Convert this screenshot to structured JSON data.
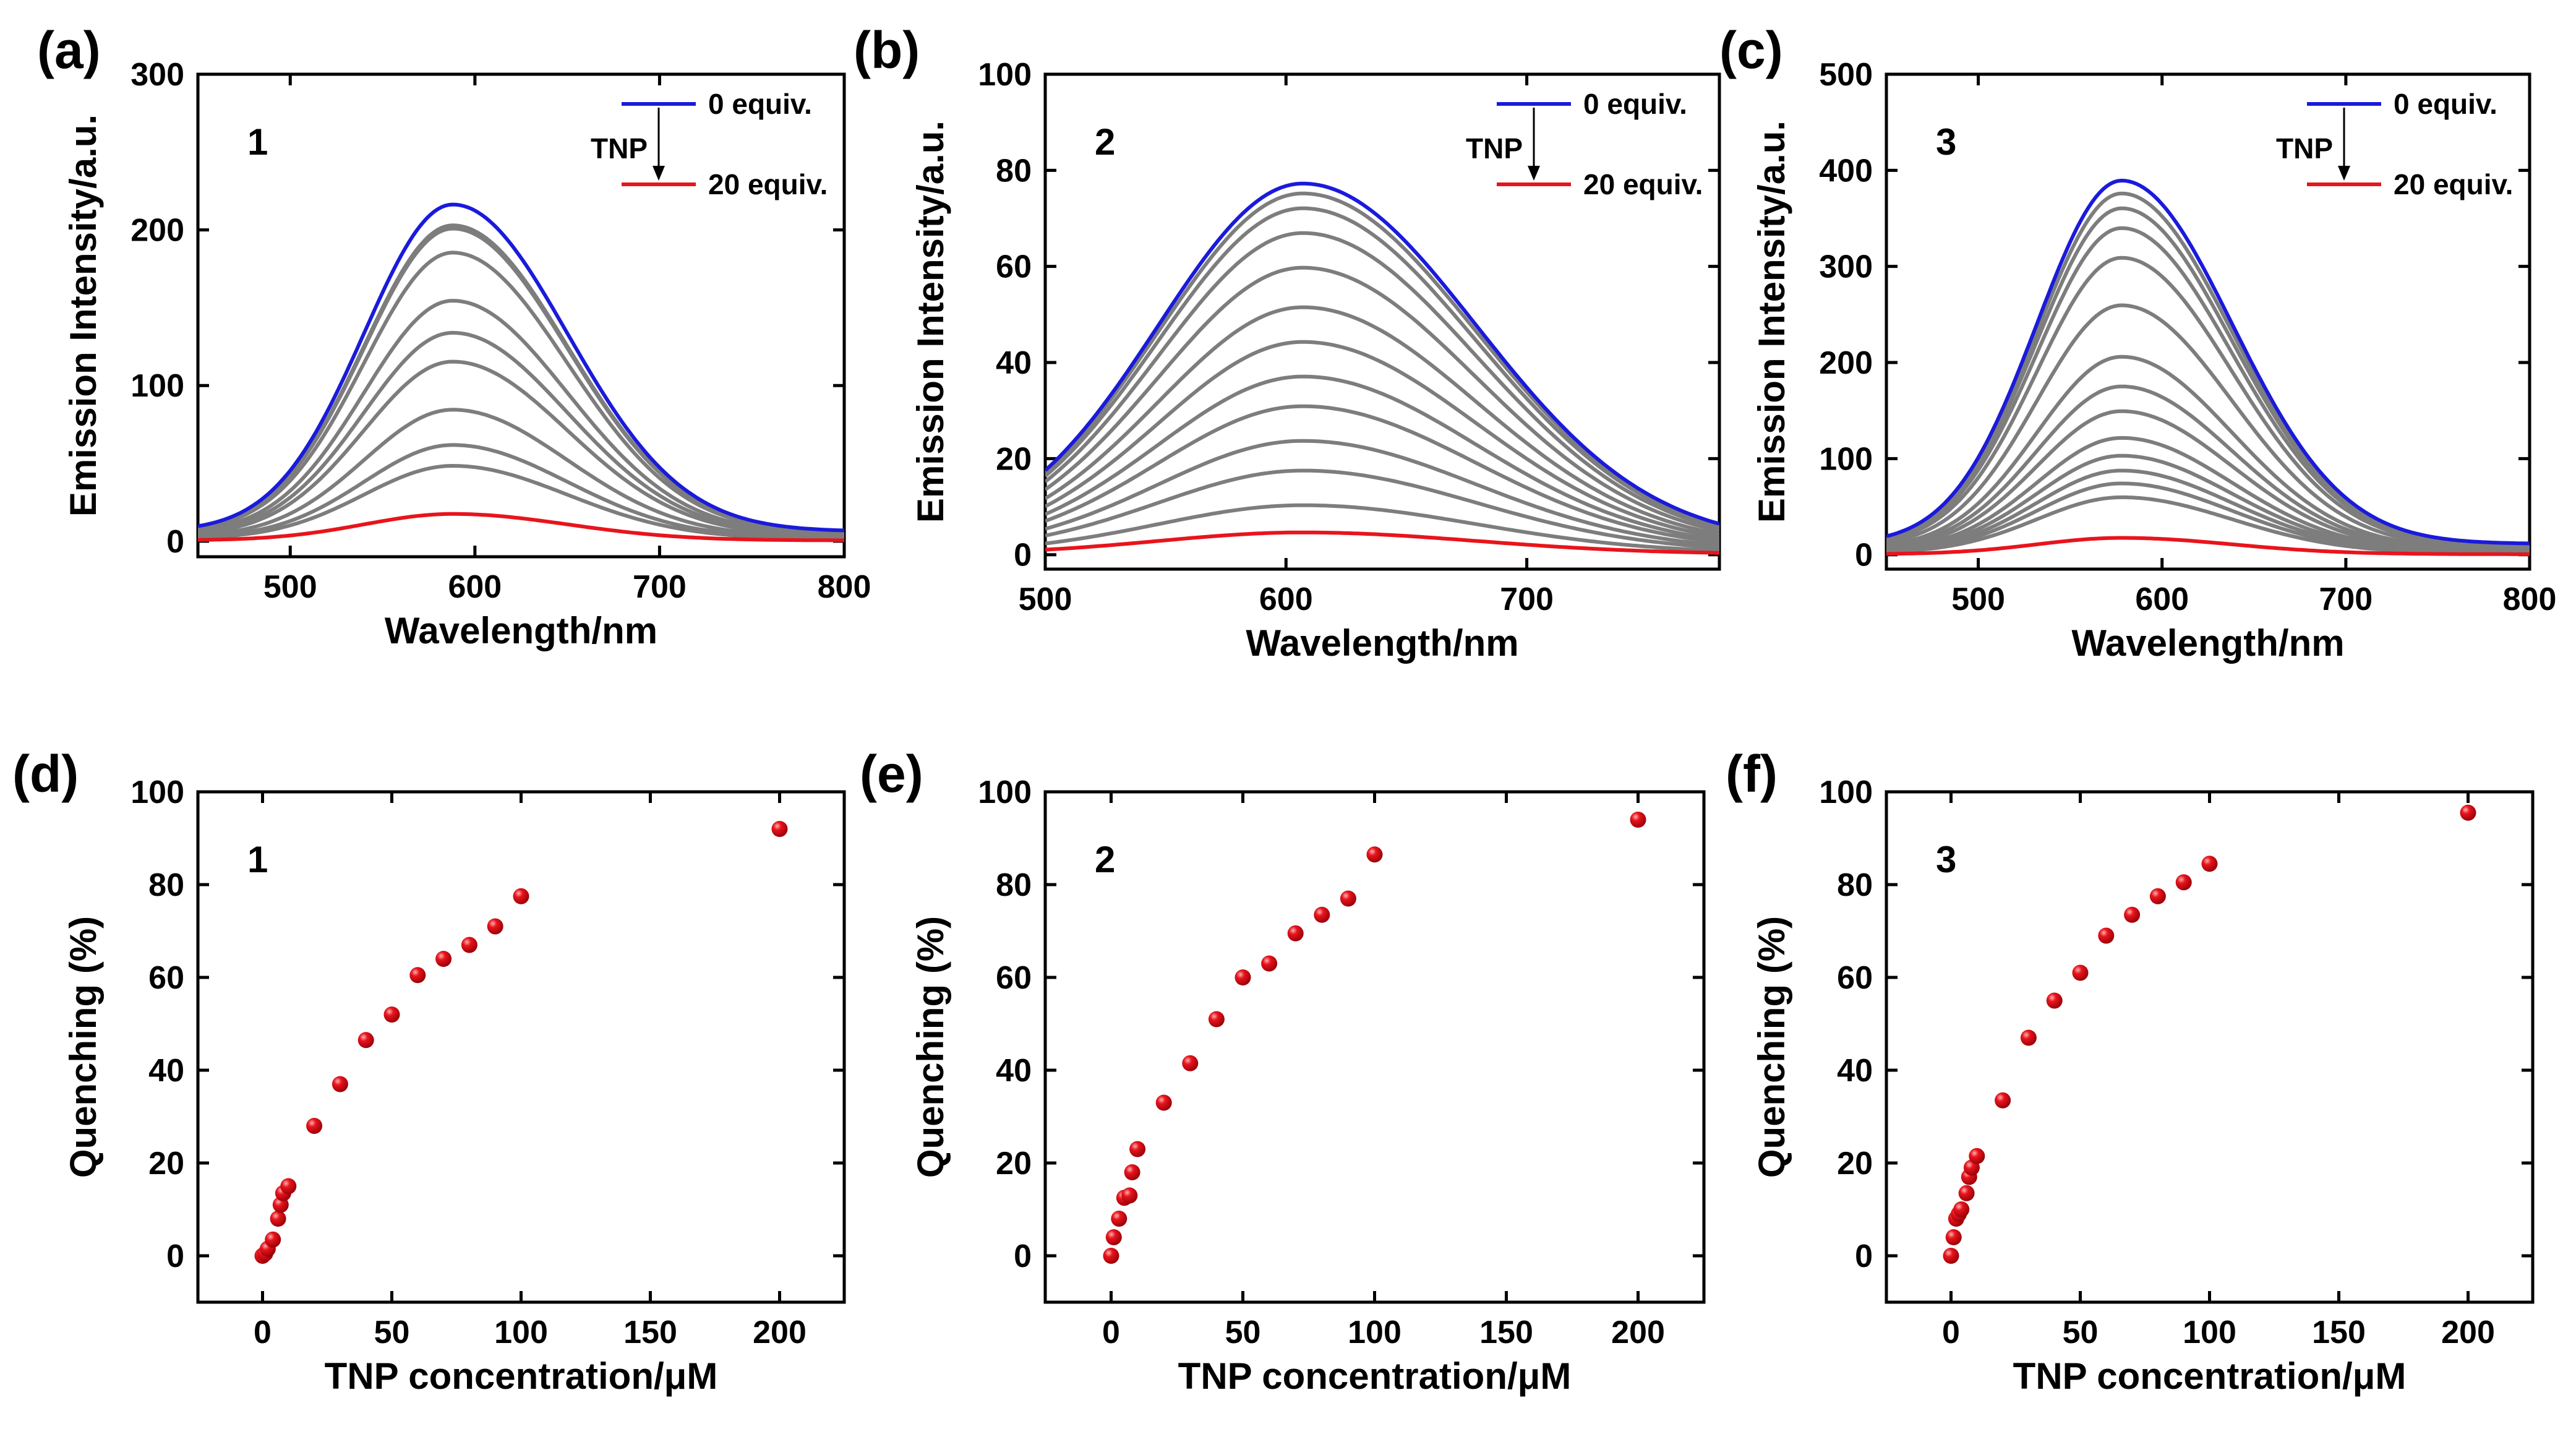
{
  "colors": {
    "start": "#1a1adc",
    "end": "#e8141c",
    "mid": "#7d7d7d",
    "marker": "#e8141c"
  },
  "chart_data": [
    {
      "id": "a",
      "type": "line",
      "panel_label": "(a)",
      "sample": "1",
      "xlabel": "Wavelength/nm",
      "ylabel": "Emission Intensity/a.u.",
      "xlim": [
        450,
        800
      ],
      "ylim": [
        -10,
        300
      ],
      "xticks": [
        500,
        600,
        700,
        800
      ],
      "yticks": [
        0,
        100,
        200,
        300
      ],
      "legend": {
        "start": "0 equiv.",
        "end": "20 equiv.",
        "arrow_label": "TNP",
        "position": "top-right"
      },
      "peak_wavelength": 588,
      "peak_intensities": [
        210,
        197,
        195,
        180,
        150,
        130,
        112,
        82,
        60,
        47,
        17
      ]
    },
    {
      "id": "b",
      "type": "line",
      "panel_label": "(b)",
      "sample": "2",
      "xlabel": "Wavelength/nm",
      "ylabel": "Emission Intensity/a.u.",
      "xlim": [
        500,
        780
      ],
      "ylim": [
        -3,
        100
      ],
      "xticks": [
        500,
        600,
        700
      ],
      "yticks": [
        0,
        20,
        40,
        60,
        80,
        100
      ],
      "legend": {
        "start": "0 equiv.",
        "end": "20 equiv.",
        "arrow_label": "TNP",
        "position": "top-right"
      },
      "peak_wavelength": 607,
      "peak_intensities": [
        75,
        73,
        70,
        65,
        58,
        50,
        43,
        36,
        30,
        23,
        17,
        10,
        4.5
      ]
    },
    {
      "id": "c",
      "type": "line",
      "panel_label": "(c)",
      "sample": "3",
      "xlabel": "Wavelength/nm",
      "ylabel": "Emission Intensity/a.u.",
      "xlim": [
        450,
        800
      ],
      "ylim": [
        -15,
        500
      ],
      "xticks": [
        500,
        600,
        700,
        800
      ],
      "yticks": [
        0,
        100,
        200,
        300,
        400,
        500
      ],
      "legend": {
        "start": "0 equiv.",
        "end": "20 equiv.",
        "arrow_label": "TNP",
        "position": "top-right"
      },
      "peak_wavelength": 578,
      "peak_intensities": [
        378,
        365,
        350,
        330,
        300,
        252,
        200,
        170,
        145,
        118,
        100,
        85,
        72,
        58,
        17
      ]
    },
    {
      "id": "d",
      "type": "scatter",
      "panel_label": "(d)",
      "sample": "1",
      "xlabel": "TNP concentration/μM",
      "ylabel": "Quenching (%)",
      "xlim": [
        -25,
        225
      ],
      "ylim": [
        -10,
        100
      ],
      "xticks": [
        0,
        50,
        100,
        150,
        200
      ],
      "yticks": [
        0,
        20,
        40,
        60,
        80,
        100
      ],
      "x": [
        0,
        1,
        2,
        4,
        6,
        7,
        8,
        10,
        20,
        30,
        40,
        50,
        60,
        70,
        80,
        90,
        100,
        200
      ],
      "y": [
        0,
        0.5,
        1.5,
        3.5,
        8,
        11,
        13.5,
        15,
        28,
        37,
        46.5,
        52,
        60.5,
        64,
        67,
        71,
        77.5,
        92
      ]
    },
    {
      "id": "e",
      "type": "scatter",
      "panel_label": "(e)",
      "sample": "2",
      "xlabel": "TNP concentration/μM",
      "ylabel": "Quenching (%)",
      "xlim": [
        -25,
        225
      ],
      "ylim": [
        -10,
        100
      ],
      "xticks": [
        0,
        50,
        100,
        150,
        200
      ],
      "yticks": [
        0,
        20,
        40,
        60,
        80,
        100
      ],
      "x": [
        0,
        1,
        3,
        5,
        7,
        8,
        10,
        20,
        30,
        40,
        50,
        60,
        70,
        80,
        90,
        100,
        200
      ],
      "y": [
        0,
        4,
        8,
        12.5,
        13,
        18,
        23,
        33,
        41.5,
        51,
        60,
        63,
        69.5,
        73.5,
        77,
        86.5,
        94
      ]
    },
    {
      "id": "f",
      "type": "scatter",
      "panel_label": "(f)",
      "sample": "3",
      "xlabel": "TNP concentration/μM",
      "ylabel": "Quenching (%)",
      "xlim": [
        -25,
        225
      ],
      "ylim": [
        -10,
        100
      ],
      "xticks": [
        0,
        50,
        100,
        150,
        200
      ],
      "yticks": [
        0,
        20,
        40,
        60,
        80,
        100
      ],
      "x": [
        0,
        1,
        2,
        3,
        4,
        6,
        7,
        8,
        10,
        20,
        30,
        40,
        50,
        60,
        70,
        80,
        90,
        100,
        200
      ],
      "y": [
        0,
        4,
        8,
        9,
        10,
        13.5,
        17,
        19,
        21.5,
        33.5,
        47,
        55,
        61,
        69,
        73.5,
        77.5,
        80.5,
        84.5,
        95.5
      ]
    }
  ]
}
